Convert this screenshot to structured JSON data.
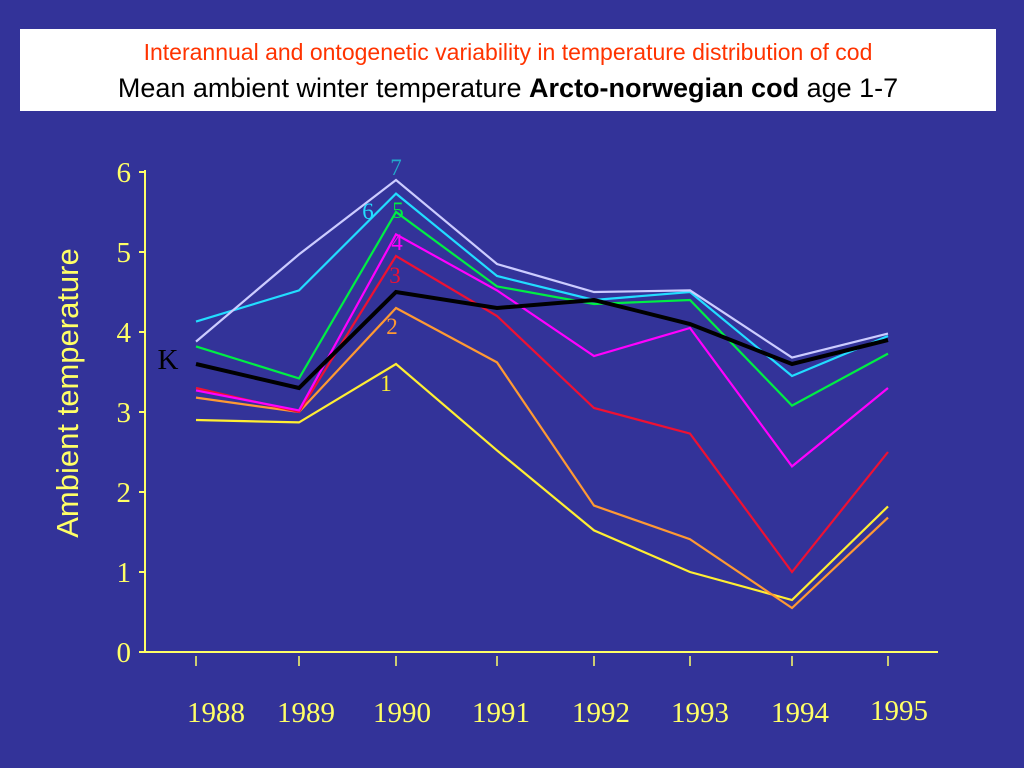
{
  "slide": {
    "title_line1": "Interannual and ontogenetic variability in temperature distribution of cod",
    "title_line2_pre": "Mean ambient winter temperature ",
    "title_line2_bold": "Arcto-norwegian cod",
    "title_line2_post": " age 1-7"
  },
  "colors": {
    "background": "#333399",
    "axis": "#ffff66",
    "title_red": "#ff3300"
  },
  "chart_data": {
    "type": "line",
    "title": "",
    "xlabel": "",
    "ylabel": "Ambient temperature",
    "x": [
      "1988",
      "1989",
      "1990",
      "1991",
      "1992",
      "1993",
      "1994",
      "1995"
    ],
    "yticks": [
      "0",
      "1",
      "2",
      "3",
      "4",
      "5",
      "6"
    ],
    "ylim": [
      0,
      6
    ],
    "grid": false,
    "legend": "inline labels",
    "series": [
      {
        "name": "1",
        "color": "#ffee33",
        "values": [
          2.9,
          2.87,
          3.6,
          2.52,
          1.52,
          1.0,
          0.65,
          1.82
        ]
      },
      {
        "name": "2",
        "color": "#ff9933",
        "values": [
          3.18,
          3.0,
          4.3,
          3.62,
          1.83,
          1.41,
          0.55,
          1.68
        ]
      },
      {
        "name": "3",
        "color": "#ee1133",
        "values": [
          3.3,
          3.0,
          4.95,
          4.2,
          3.05,
          2.73,
          1.0,
          2.5
        ]
      },
      {
        "name": "4",
        "color": "#ff00ff",
        "values": [
          3.27,
          3.02,
          5.22,
          4.52,
          3.7,
          4.05,
          2.32,
          3.3
        ]
      },
      {
        "name": "5",
        "color": "#00ee44",
        "values": [
          3.82,
          3.42,
          5.5,
          4.57,
          4.35,
          4.4,
          3.08,
          3.73
        ]
      },
      {
        "name": "6",
        "color": "#22ddff",
        "values": [
          4.13,
          4.52,
          5.73,
          4.7,
          4.4,
          4.5,
          3.45,
          3.95
        ]
      },
      {
        "name": "7",
        "color": "#ccccff",
        "values": [
          3.88,
          4.97,
          5.9,
          4.85,
          4.5,
          4.52,
          3.68,
          3.98
        ]
      },
      {
        "name": "K",
        "color": "#000000",
        "bold": true,
        "values": [
          3.6,
          3.3,
          4.5,
          4.3,
          4.4,
          4.1,
          3.6,
          3.9
        ]
      }
    ],
    "inline_labels": [
      {
        "text": "1",
        "color": "#ffee33"
      },
      {
        "text": "2",
        "color": "#ff9933"
      },
      {
        "text": "3",
        "color": "#ee1133"
      },
      {
        "text": "4",
        "color": "#ff00ff"
      },
      {
        "text": "5",
        "color": "#00ee44"
      },
      {
        "text": "6",
        "color": "#22ddff"
      },
      {
        "text": "7",
        "color": "#22aacc"
      },
      {
        "text": "K",
        "color": "#000000"
      }
    ]
  }
}
